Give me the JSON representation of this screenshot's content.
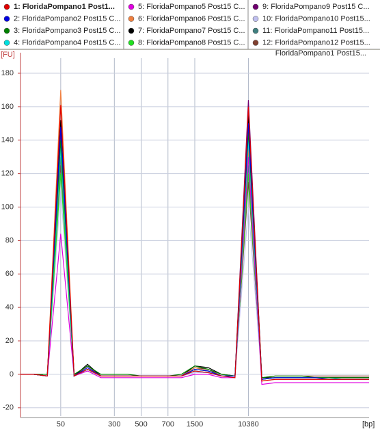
{
  "chart_data": {
    "type": "line",
    "annotation": "FloridaPompano1 Post15...",
    "y_label": "[FU]",
    "x_label": "[bp]",
    "categories": [
      null,
      null,
      null,
      "50",
      null,
      null,
      null,
      "300",
      null,
      "500",
      null,
      "700",
      null,
      "1500",
      null,
      null,
      null,
      "10380",
      null,
      null,
      null,
      null,
      null,
      null,
      null,
      null,
      null
    ],
    "ylim": [
      -25,
      189
    ],
    "yticks": [
      -20,
      0,
      20,
      40,
      60,
      80,
      100,
      120,
      140,
      160,
      180
    ],
    "grid": true,
    "series": [
      {
        "name": "1: FloridaPompano1 Post1...",
        "color": "#e00000",
        "values": [
          0,
          0,
          -1,
          161,
          -1,
          3,
          -1,
          -1,
          -1,
          -1,
          -1,
          -1,
          -1,
          2,
          1,
          -1,
          -2,
          160,
          -4,
          -3,
          -3,
          -3,
          -3,
          -3,
          -3,
          -3,
          -3
        ]
      },
      {
        "name": "2: FloridaPompano2 Post15 C...",
        "color": "#0000e0",
        "values": [
          0,
          0,
          -1,
          148,
          -1,
          4,
          -1,
          -1,
          -1,
          -1,
          -1,
          -1,
          -1,
          3,
          2,
          -1,
          -1,
          150,
          -3,
          -2,
          -2,
          -2,
          -2,
          -3,
          -3,
          -3,
          -3
        ]
      },
      {
        "name": "3: FloridaPompano3 Post15 C...",
        "color": "#008000",
        "values": [
          0,
          0,
          0,
          140,
          0,
          5,
          0,
          0,
          0,
          -1,
          -1,
          -1,
          0,
          5,
          3,
          0,
          -1,
          145,
          -2,
          -1,
          -1,
          -1,
          -2,
          -2,
          -2,
          -2,
          -2
        ]
      },
      {
        "name": "4: FloridaPompano4 Post15 C...",
        "color": "#00e0e0",
        "values": [
          0,
          0,
          -1,
          135,
          -1,
          3,
          -1,
          -1,
          -1,
          -1,
          -1,
          -1,
          -1,
          2,
          1,
          -1,
          -1,
          140,
          -3,
          -2,
          -2,
          -2,
          -2,
          -2,
          -3,
          -3,
          -3
        ]
      },
      {
        "name": "5: FloridaPompano5 Post15 C...",
        "color": "#e000e0",
        "values": [
          0,
          0,
          -1,
          84,
          -1,
          2,
          -2,
          -2,
          -2,
          -2,
          -2,
          -2,
          -2,
          0,
          0,
          -2,
          -2,
          130,
          -6,
          -5,
          -5,
          -5,
          -5,
          -5,
          -5,
          -5,
          -5
        ]
      },
      {
        "name": "6: FloridaPompano6 Post15 C...",
        "color": "#f08040",
        "values": [
          0,
          0,
          -1,
          170,
          -1,
          4,
          -1,
          -1,
          -1,
          -1,
          -1,
          -1,
          -1,
          4,
          2,
          -1,
          -1,
          135,
          -4,
          -3,
          -3,
          -3,
          -3,
          -3,
          -3,
          -3,
          -3
        ]
      },
      {
        "name": "7: FloridaPompano7 Post15 C...",
        "color": "#000000",
        "values": [
          0,
          0,
          -1,
          152,
          -1,
          6,
          -1,
          -1,
          -1,
          -1,
          -1,
          -1,
          -1,
          5,
          4,
          0,
          -1,
          155,
          -2,
          -2,
          -2,
          -2,
          -2,
          -2,
          -2,
          -2,
          -2
        ]
      },
      {
        "name": "8: FloridaPompano8 Post15 C...",
        "color": "#20e020",
        "values": [
          0,
          0,
          -1,
          120,
          -1,
          3,
          -1,
          -1,
          -1,
          -1,
          -1,
          -1,
          -1,
          3,
          2,
          -1,
          -1,
          120,
          -3,
          -2,
          -2,
          -2,
          -2,
          -2,
          -2,
          -2,
          -2
        ]
      },
      {
        "name": "9: FloridaPompano9 Post15 C...",
        "color": "#700070",
        "values": [
          0,
          0,
          -1,
          145,
          -1,
          3,
          -1,
          -1,
          -1,
          -1,
          -1,
          -1,
          -1,
          2,
          1,
          -1,
          -1,
          164,
          -3,
          -2,
          -2,
          -2,
          -2,
          -2,
          -2,
          -2,
          -2
        ]
      },
      {
        "name": "10: FloridaPompano10 Post15...",
        "color": "#c0c0f0",
        "values": [
          0,
          0,
          -1,
          110,
          -1,
          2,
          -1,
          -1,
          -1,
          -1,
          -1,
          -1,
          -1,
          1,
          1,
          -1,
          -1,
          100,
          -2,
          -2,
          -2,
          -2,
          -2,
          -2,
          -2,
          -2,
          -2
        ]
      },
      {
        "name": "11: FloridaPompano11 Post15...",
        "color": "#408080",
        "values": [
          0,
          0,
          -1,
          130,
          -1,
          3,
          -1,
          -1,
          -1,
          -1,
          -1,
          -1,
          -1,
          3,
          2,
          -1,
          -1,
          125,
          -3,
          -2,
          -2,
          -2,
          -2,
          -2,
          -2,
          -2,
          -2
        ]
      },
      {
        "name": "12: FloridaPompano12 Post15...",
        "color": "#804030",
        "values": [
          0,
          0,
          -1,
          125,
          -1,
          5,
          -1,
          -1,
          -1,
          -1,
          -1,
          -1,
          -1,
          4,
          3,
          -1,
          -1,
          115,
          -2,
          -1,
          -1,
          -1,
          -1,
          -1,
          -1,
          -1,
          -1
        ]
      }
    ]
  }
}
